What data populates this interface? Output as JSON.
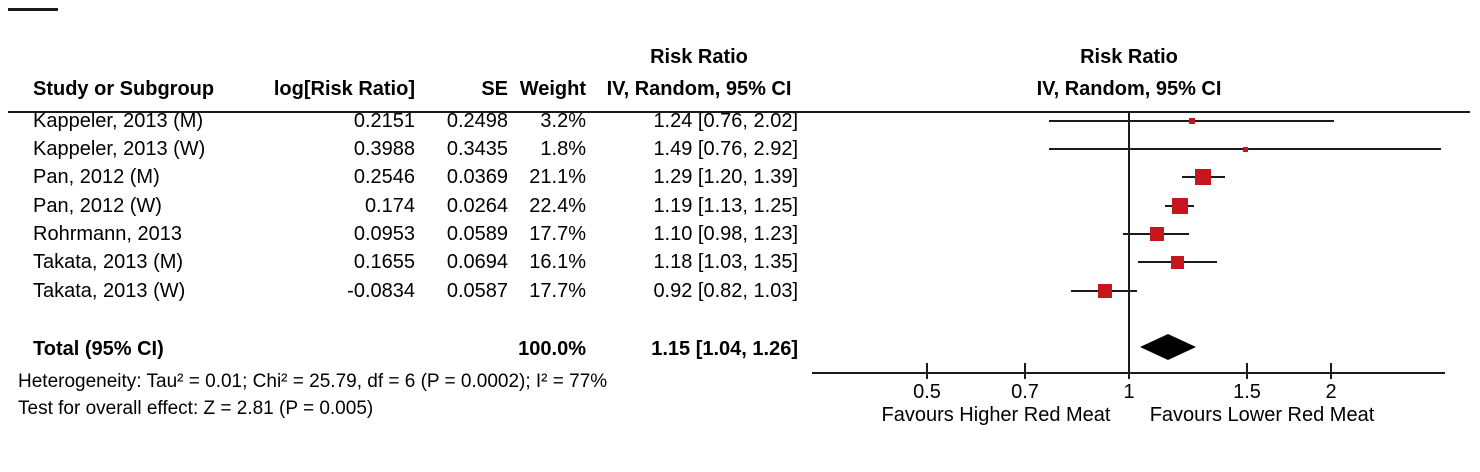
{
  "table": {
    "headers": {
      "study": "Study or Subgroup",
      "log_rr": "log[Risk Ratio]",
      "se": "SE",
      "weight": "Weight",
      "effect_line1": "Risk Ratio",
      "effect_line2": "IV, Random, 95% CI"
    },
    "rows": [
      {
        "study": "Kappeler, 2013 (M)",
        "log_rr": "0.2151",
        "se": "0.2498",
        "weight": "3.2%",
        "ci": "1.24 [0.76, 2.02]"
      },
      {
        "study": "Kappeler, 2013 (W)",
        "log_rr": "0.3988",
        "se": "0.3435",
        "weight": "1.8%",
        "ci": "1.49 [0.76, 2.92]"
      },
      {
        "study": "Pan, 2012 (M)",
        "log_rr": "0.2546",
        "se": "0.0369",
        "weight": "21.1%",
        "ci": "1.29 [1.20, 1.39]"
      },
      {
        "study": "Pan, 2012 (W)",
        "log_rr": "0.174",
        "se": "0.0264",
        "weight": "22.4%",
        "ci": "1.19 [1.13, 1.25]"
      },
      {
        "study": "Rohrmann, 2013",
        "log_rr": "0.0953",
        "se": "0.0589",
        "weight": "17.7%",
        "ci": "1.10 [0.98, 1.23]"
      },
      {
        "study": "Takata, 2013 (M)",
        "log_rr": "0.1655",
        "se": "0.0694",
        "weight": "16.1%",
        "ci": "1.18 [1.03, 1.35]"
      },
      {
        "study": "Takata, 2013 (W)",
        "log_rr": "-0.0834",
        "se": "0.0587",
        "weight": "17.7%",
        "ci": "0.92 [0.82, 1.03]"
      }
    ],
    "total": {
      "label": "Total (95% CI)",
      "weight": "100.0%",
      "ci": "1.15 [1.04, 1.26]"
    },
    "heterogeneity_text": "Heterogeneity: Tau² = 0.01; Chi² = 25.79, df = 6 (P = 0.0002); I² = 77%",
    "overall_effect_text": "Test for overall effect: Z = 2.81 (P = 0.005)"
  },
  "plot": {
    "header_line1": "Risk Ratio",
    "header_line2": "IV, Random, 95% CI",
    "tick_labels": [
      "0.5",
      "0.7",
      "1",
      "1.5",
      "2"
    ],
    "favours_left": "Favours Higher Red Meat",
    "favours_right": "Favours Lower Red Meat",
    "marker_color": "#C4161C",
    "line_color": "#1a1a1a",
    "diamond_color": "#000000"
  },
  "chart_data": {
    "type": "forest",
    "effect_measure": "Risk Ratio",
    "model": "IV, Random, 95% CI",
    "x_scale": "log",
    "x_ticks": [
      0.5,
      0.7,
      1,
      1.5,
      2
    ],
    "null_line": 1,
    "studies": [
      {
        "study": "Kappeler, 2013 (M)",
        "log_rr": 0.2151,
        "se": 0.2498,
        "weight_pct": 3.2,
        "rr": 1.24,
        "ci_low": 0.76,
        "ci_high": 2.02
      },
      {
        "study": "Kappeler, 2013 (W)",
        "log_rr": 0.3988,
        "se": 0.3435,
        "weight_pct": 1.8,
        "rr": 1.49,
        "ci_low": 0.76,
        "ci_high": 2.92
      },
      {
        "study": "Pan, 2012 (M)",
        "log_rr": 0.2546,
        "se": 0.0369,
        "weight_pct": 21.1,
        "rr": 1.29,
        "ci_low": 1.2,
        "ci_high": 1.39
      },
      {
        "study": "Pan, 2012 (W)",
        "log_rr": 0.174,
        "se": 0.0264,
        "weight_pct": 22.4,
        "rr": 1.19,
        "ci_low": 1.13,
        "ci_high": 1.25
      },
      {
        "study": "Rohrmann, 2013",
        "log_rr": 0.0953,
        "se": 0.0589,
        "weight_pct": 17.7,
        "rr": 1.1,
        "ci_low": 0.98,
        "ci_high": 1.23
      },
      {
        "study": "Takata, 2013 (M)",
        "log_rr": 0.1655,
        "se": 0.0694,
        "weight_pct": 16.1,
        "rr": 1.18,
        "ci_low": 1.03,
        "ci_high": 1.35
      },
      {
        "study": "Takata, 2013 (W)",
        "log_rr": -0.0834,
        "se": 0.0587,
        "weight_pct": 17.7,
        "rr": 0.92,
        "ci_low": 0.82,
        "ci_high": 1.03
      }
    ],
    "total": {
      "label": "Total (95% CI)",
      "weight_pct": 100.0,
      "rr": 1.15,
      "ci_low": 1.04,
      "ci_high": 1.26
    },
    "heterogeneity": {
      "tau2": 0.01,
      "chi2": 25.79,
      "df": 6,
      "p": 0.0002,
      "i2_pct": 77
    },
    "overall_effect": {
      "z": 2.81,
      "p": 0.005
    },
    "axis_annotations": {
      "left_of_null": "Favours Higher Red Meat",
      "right_of_null": "Favours Lower Red Meat"
    }
  }
}
